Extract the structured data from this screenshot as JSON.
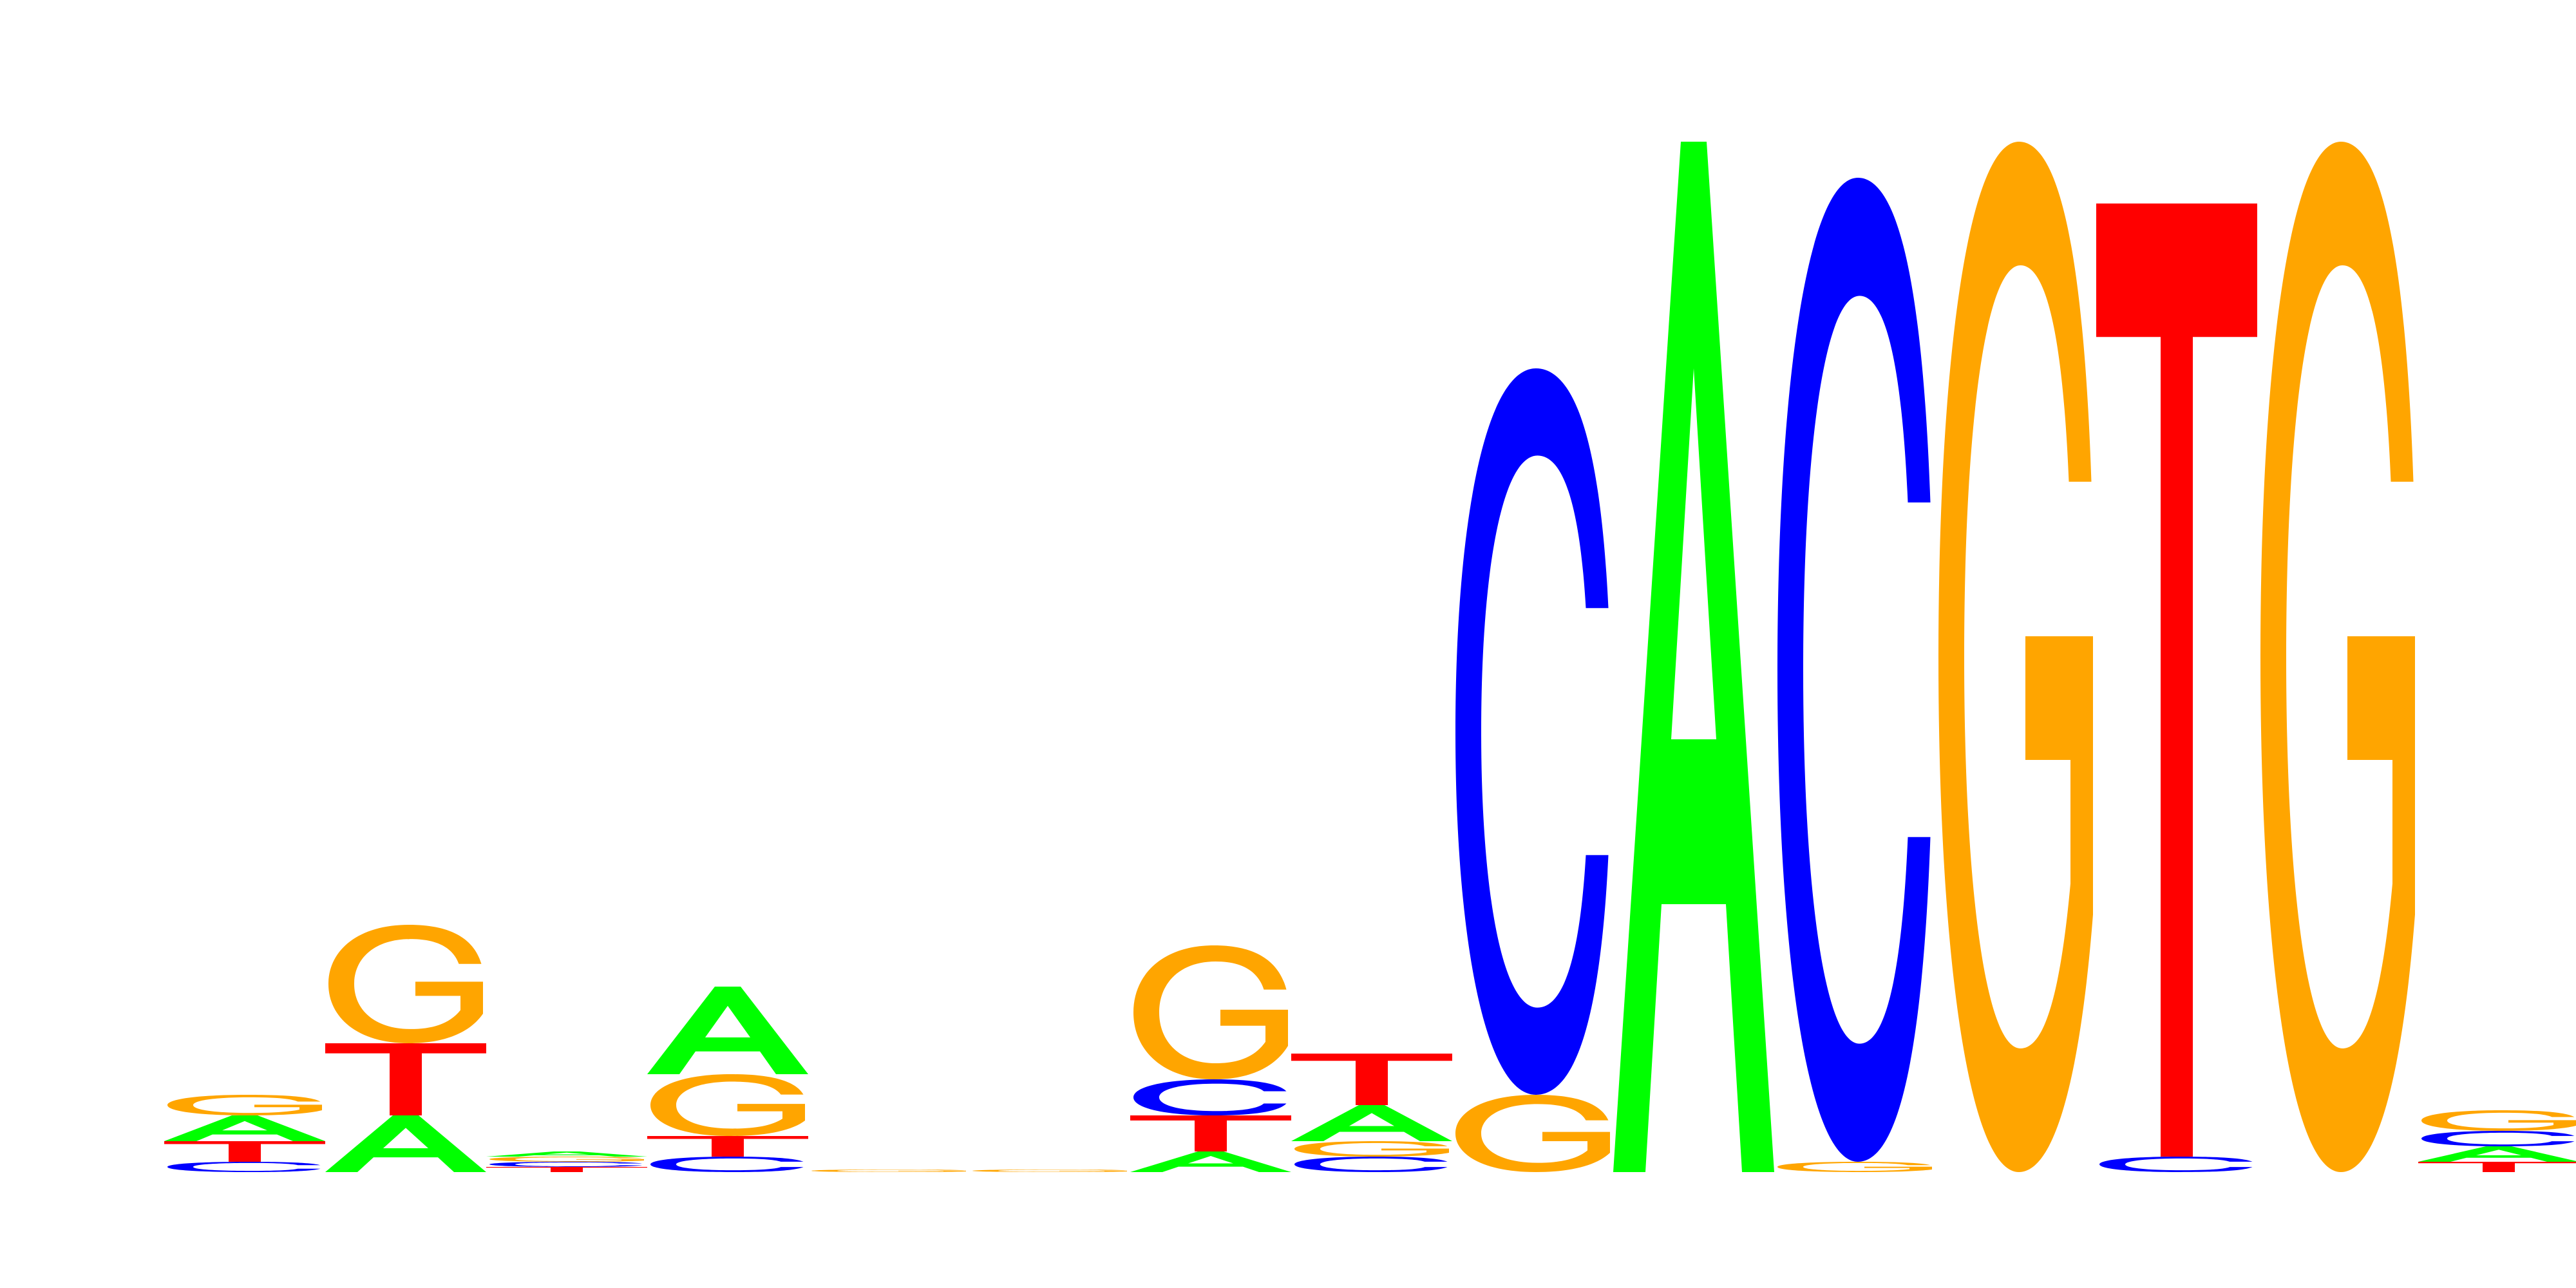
{
  "colors": {
    "A": "#00ff00",
    "C": "#0000ff",
    "G": "#ffa500",
    "T": "#ff0000",
    "background": "#ffffff"
  },
  "chart_data": {
    "type": "sequence_logo",
    "alphabet": [
      "A",
      "C",
      "G",
      "T"
    ],
    "ylabel": "",
    "xlabel": "",
    "ylim": [
      0,
      2
    ],
    "positions": [
      {
        "index": 1,
        "letters": [
          {
            "base": "C",
            "bits": 0.02
          },
          {
            "base": "T",
            "bits": 0.04
          },
          {
            "base": "A",
            "bits": 0.05
          },
          {
            "base": "G",
            "bits": 0.04
          }
        ]
      },
      {
        "index": 2,
        "letters": [
          {
            "base": "A",
            "bits": 0.11
          },
          {
            "base": "T",
            "bits": 0.14
          },
          {
            "base": "G",
            "bits": 0.23
          }
        ]
      },
      {
        "index": 3,
        "letters": [
          {
            "base": "T",
            "bits": 0.01
          },
          {
            "base": "C",
            "bits": 0.01
          },
          {
            "base": "G",
            "bits": 0.01
          },
          {
            "base": "A",
            "bits": 0.01
          }
        ]
      },
      {
        "index": 4,
        "letters": [
          {
            "base": "C",
            "bits": 0.03
          },
          {
            "base": "T",
            "bits": 0.04
          },
          {
            "base": "G",
            "bits": 0.12
          },
          {
            "base": "A",
            "bits": 0.17
          }
        ]
      },
      {
        "index": 5,
        "letters": [
          {
            "base": "G",
            "bits": 0.005
          }
        ]
      },
      {
        "index": 6,
        "letters": [
          {
            "base": "G",
            "bits": 0.005
          }
        ]
      },
      {
        "index": 7,
        "letters": [
          {
            "base": "A",
            "bits": 0.04
          },
          {
            "base": "T",
            "bits": 0.07
          },
          {
            "base": "C",
            "bits": 0.07
          },
          {
            "base": "G",
            "bits": 0.26
          }
        ]
      },
      {
        "index": 8,
        "letters": [
          {
            "base": "C",
            "bits": 0.03
          },
          {
            "base": "G",
            "bits": 0.03
          },
          {
            "base": "A",
            "bits": 0.07
          },
          {
            "base": "T",
            "bits": 0.1
          }
        ]
      },
      {
        "index": 9,
        "letters": [
          {
            "base": "G",
            "bits": 0.15
          },
          {
            "base": "C",
            "bits": 1.41
          }
        ]
      },
      {
        "index": 10,
        "letters": [
          {
            "base": "A",
            "bits": 2.0
          }
        ]
      },
      {
        "index": 11,
        "letters": [
          {
            "base": "G",
            "bits": 0.02
          },
          {
            "base": "C",
            "bits": 1.91
          }
        ]
      },
      {
        "index": 12,
        "letters": [
          {
            "base": "G",
            "bits": 2.0
          }
        ]
      },
      {
        "index": 13,
        "letters": [
          {
            "base": "C",
            "bits": 0.03
          },
          {
            "base": "T",
            "bits": 1.85
          }
        ]
      },
      {
        "index": 14,
        "letters": [
          {
            "base": "G",
            "bits": 2.0
          }
        ]
      },
      {
        "index": 15,
        "letters": [
          {
            "base": "T",
            "bits": 0.02
          },
          {
            "base": "A",
            "bits": 0.03
          },
          {
            "base": "C",
            "bits": 0.03
          },
          {
            "base": "G",
            "bits": 0.04
          }
        ]
      }
    ]
  }
}
